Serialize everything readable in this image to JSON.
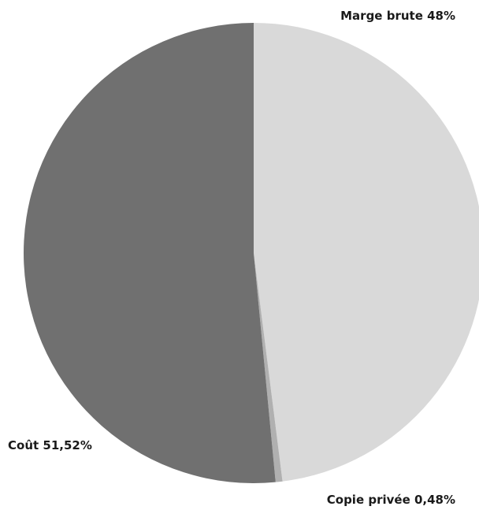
{
  "chart_data": {
    "type": "pie",
    "slices": [
      {
        "label": "Marge brute 48%",
        "value": 48,
        "color": "#d9d9d9"
      },
      {
        "label": "Copie privée 0,48%",
        "value": 0.48,
        "color": "#b0b0b0"
      },
      {
        "label": "Coût 51,52%",
        "value": 51.52,
        "color": "#707070"
      }
    ],
    "start": "top (12 o'clock)",
    "direction": "clockwise",
    "legend": "none (labels placed beside slices)"
  }
}
